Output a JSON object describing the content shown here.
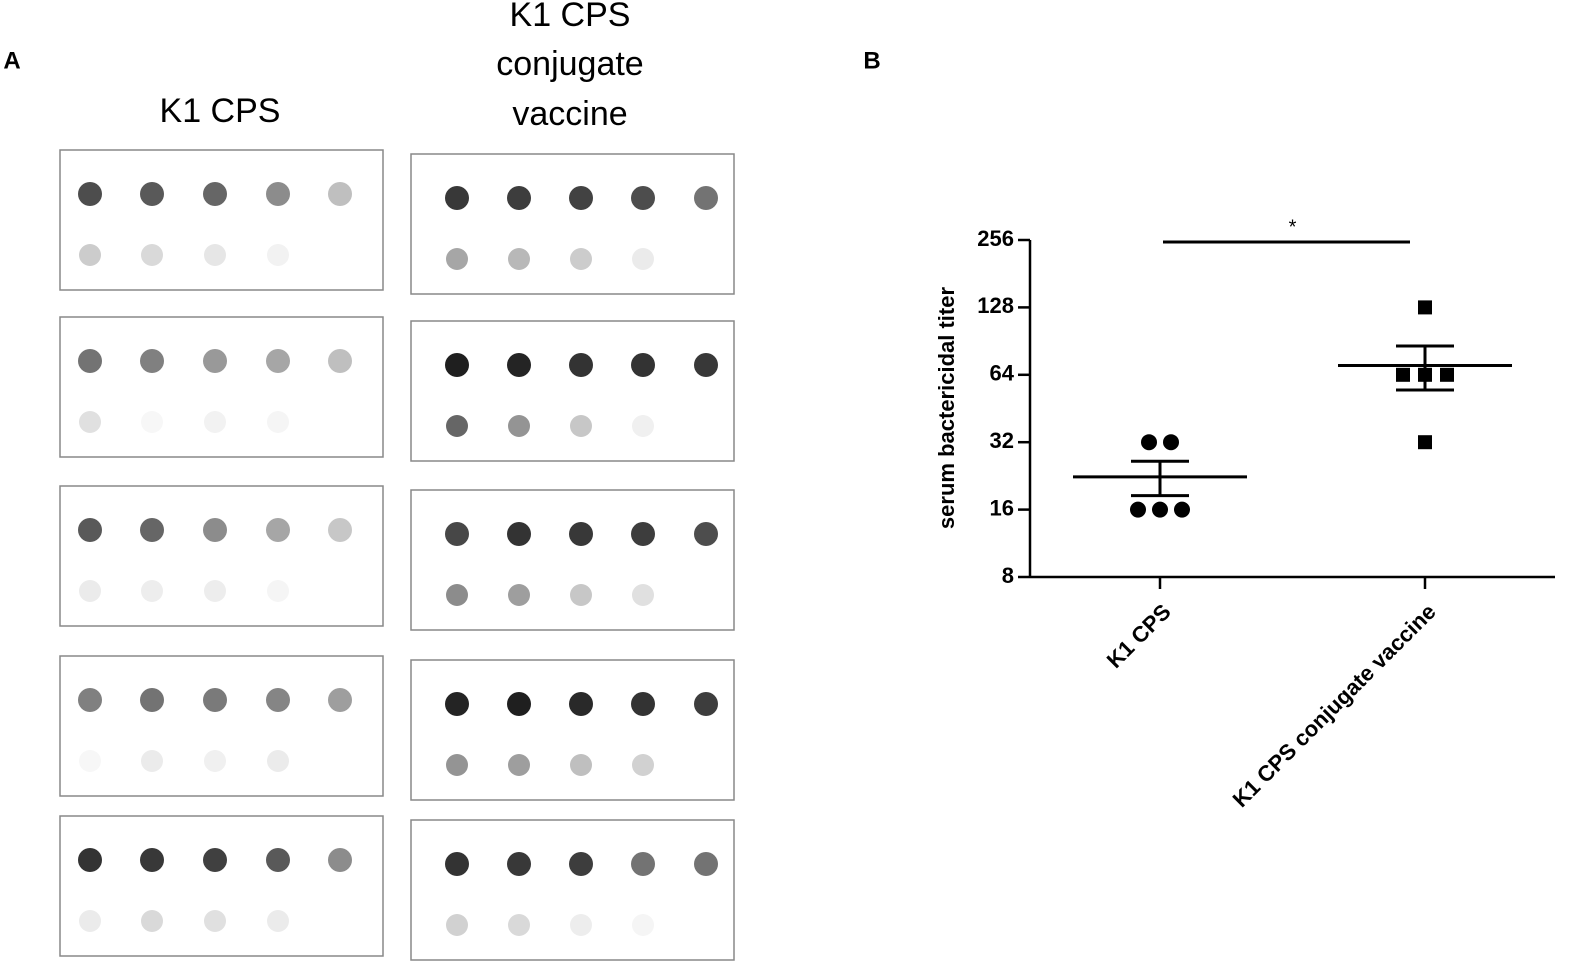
{
  "panel_a": {
    "label": "A",
    "columns": [
      {
        "title_lines": [
          "K1 CPS"
        ]
      },
      {
        "title_lines": [
          "K1 CPS",
          "conjugate",
          "vaccine"
        ]
      }
    ]
  },
  "chart_data": {
    "type": "dot",
    "panel_label": "B",
    "ylabel": "serum bactericidal titer",
    "log_scale": true,
    "log_base": 2,
    "categories": [
      "K1 CPS",
      "K1 CPS conjugate vaccine"
    ],
    "markers": [
      "circle",
      "square"
    ],
    "color": "#000000",
    "points": [
      [
        32,
        32,
        16,
        16,
        16
      ],
      [
        128,
        64,
        64,
        64,
        32
      ]
    ],
    "means": [
      22.4,
      70.4
    ],
    "sems": [
      3.92,
      15.68
    ],
    "ylim": [
      8,
      256
    ],
    "yticks": [
      8,
      16,
      32,
      64,
      128,
      256
    ],
    "annotation": "*"
  }
}
